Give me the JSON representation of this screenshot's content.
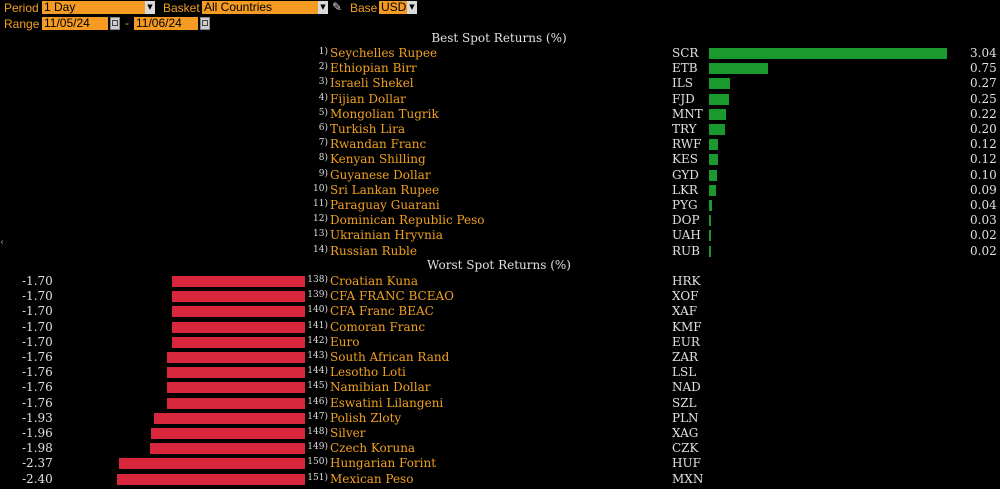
{
  "toolbar": {
    "period_label": "Period",
    "period_value": "1 Day",
    "basket_label": "Basket",
    "basket_value": "All Countries",
    "base_label": "Base",
    "base_value": "USD",
    "range_label": "Range",
    "range_start": "11/05/24",
    "range_end": "11/06/24",
    "range_dash": "-"
  },
  "best": {
    "title": "Best Spot Returns (%)",
    "rows": [
      {
        "rank": "1)",
        "name": "Seychelles Rupee",
        "code": "SCR",
        "value": "3.04"
      },
      {
        "rank": "2)",
        "name": "Ethiopian Birr",
        "code": "ETB",
        "value": "0.75"
      },
      {
        "rank": "3)",
        "name": "Israeli Shekel",
        "code": "ILS",
        "value": "0.27"
      },
      {
        "rank": "4)",
        "name": "Fijian Dollar",
        "code": "FJD",
        "value": "0.25"
      },
      {
        "rank": "5)",
        "name": "Mongolian Tugrik",
        "code": "MNT",
        "value": "0.22"
      },
      {
        "rank": "6)",
        "name": "Turkish Lira",
        "code": "TRY",
        "value": "0.20"
      },
      {
        "rank": "7)",
        "name": "Rwandan Franc",
        "code": "RWF",
        "value": "0.12"
      },
      {
        "rank": "8)",
        "name": "Kenyan Shilling",
        "code": "KES",
        "value": "0.12"
      },
      {
        "rank": "9)",
        "name": "Guyanese Dollar",
        "code": "GYD",
        "value": "0.10"
      },
      {
        "rank": "10)",
        "name": "Sri Lankan Rupee",
        "code": "LKR",
        "value": "0.09"
      },
      {
        "rank": "11)",
        "name": "Paraguay Guarani",
        "code": "PYG",
        "value": "0.04"
      },
      {
        "rank": "12)",
        "name": "Dominican Republic Peso",
        "code": "DOP",
        "value": "0.03"
      },
      {
        "rank": "13)",
        "name": "Ukrainian Hryvnia",
        "code": "UAH",
        "value": "0.02"
      },
      {
        "rank": "14)",
        "name": "Russian Ruble",
        "code": "RUB",
        "value": "0.02"
      }
    ]
  },
  "worst": {
    "title": "Worst Spot Returns (%)",
    "rows": [
      {
        "rank": "138)",
        "name": "Croatian Kuna",
        "code": "HRK",
        "value": "-1.70"
      },
      {
        "rank": "139)",
        "name": "CFA FRANC BCEAO",
        "code": "XOF",
        "value": "-1.70"
      },
      {
        "rank": "140)",
        "name": "CFA Franc BEAC",
        "code": "XAF",
        "value": "-1.70"
      },
      {
        "rank": "141)",
        "name": "Comoran Franc",
        "code": "KMF",
        "value": "-1.70"
      },
      {
        "rank": "142)",
        "name": "Euro",
        "code": "EUR",
        "value": "-1.70"
      },
      {
        "rank": "143)",
        "name": "South African Rand",
        "code": "ZAR",
        "value": "-1.76"
      },
      {
        "rank": "144)",
        "name": "Lesotho Loti",
        "code": "LSL",
        "value": "-1.76"
      },
      {
        "rank": "145)",
        "name": "Namibian Dollar",
        "code": "NAD",
        "value": "-1.76"
      },
      {
        "rank": "146)",
        "name": "Eswatini Lilangeni",
        "code": "SZL",
        "value": "-1.76"
      },
      {
        "rank": "147)",
        "name": "Polish Zloty",
        "code": "PLN",
        "value": "-1.93"
      },
      {
        "rank": "148)",
        "name": "Silver",
        "code": "XAG",
        "value": "-1.96"
      },
      {
        "rank": "149)",
        "name": "Czech Koruna",
        "code": "CZK",
        "value": "-1.98"
      },
      {
        "rank": "150)",
        "name": "Hungarian Forint",
        "code": "HUF",
        "value": "-2.37"
      },
      {
        "rank": "151)",
        "name": "Mexican Peso",
        "code": "MXN",
        "value": "-2.40"
      }
    ]
  },
  "colors": {
    "accent": "#f0a020",
    "positive_bar": "#1a9a2e",
    "negative_bar": "#d8263d",
    "background": "#000000"
  },
  "icons": {
    "dropdown": "chevron-down-icon",
    "calendar": "calendar-icon",
    "edit": "pencil-icon"
  }
}
